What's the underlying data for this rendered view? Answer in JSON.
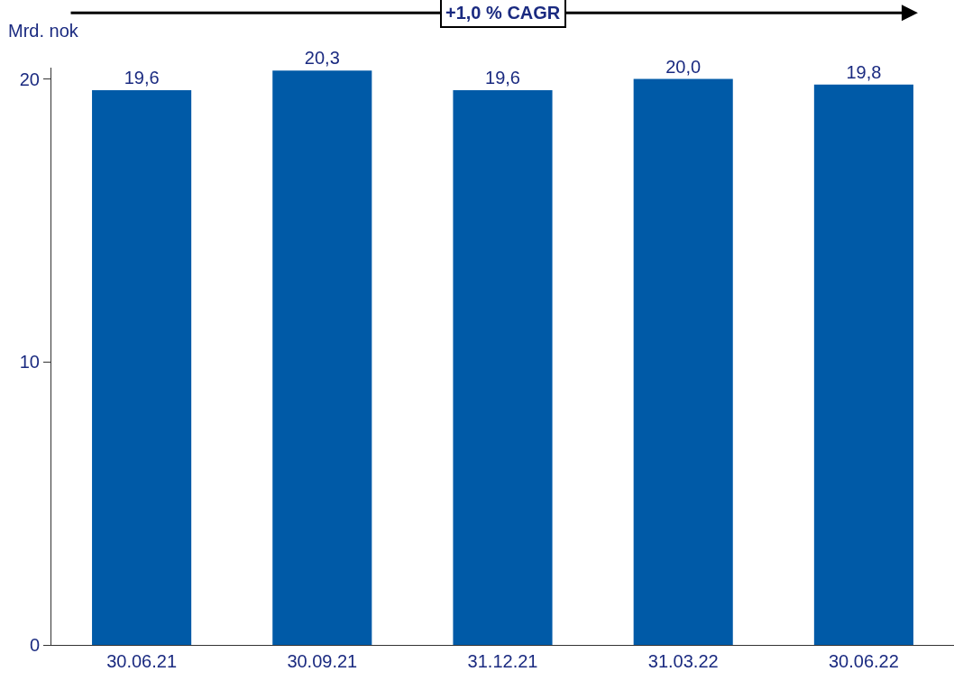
{
  "chart_data": {
    "type": "bar",
    "ylabel": "Mrd. nok",
    "categories": [
      "30.06.21",
      "30.09.21",
      "31.12.21",
      "31.03.22",
      "30.06.22"
    ],
    "values": [
      19.6,
      20.3,
      19.6,
      20.0,
      19.8
    ],
    "color": "#005aa7",
    "ylim": [
      0,
      20.4
    ],
    "yticks": [
      0,
      10,
      20
    ],
    "legend": false,
    "data_labels": true,
    "value_labels": [
      "19,6",
      "20,3",
      "19,6",
      "20,0",
      "19,8"
    ],
    "annotations": [
      "+1,0 % CAGR"
    ]
  }
}
